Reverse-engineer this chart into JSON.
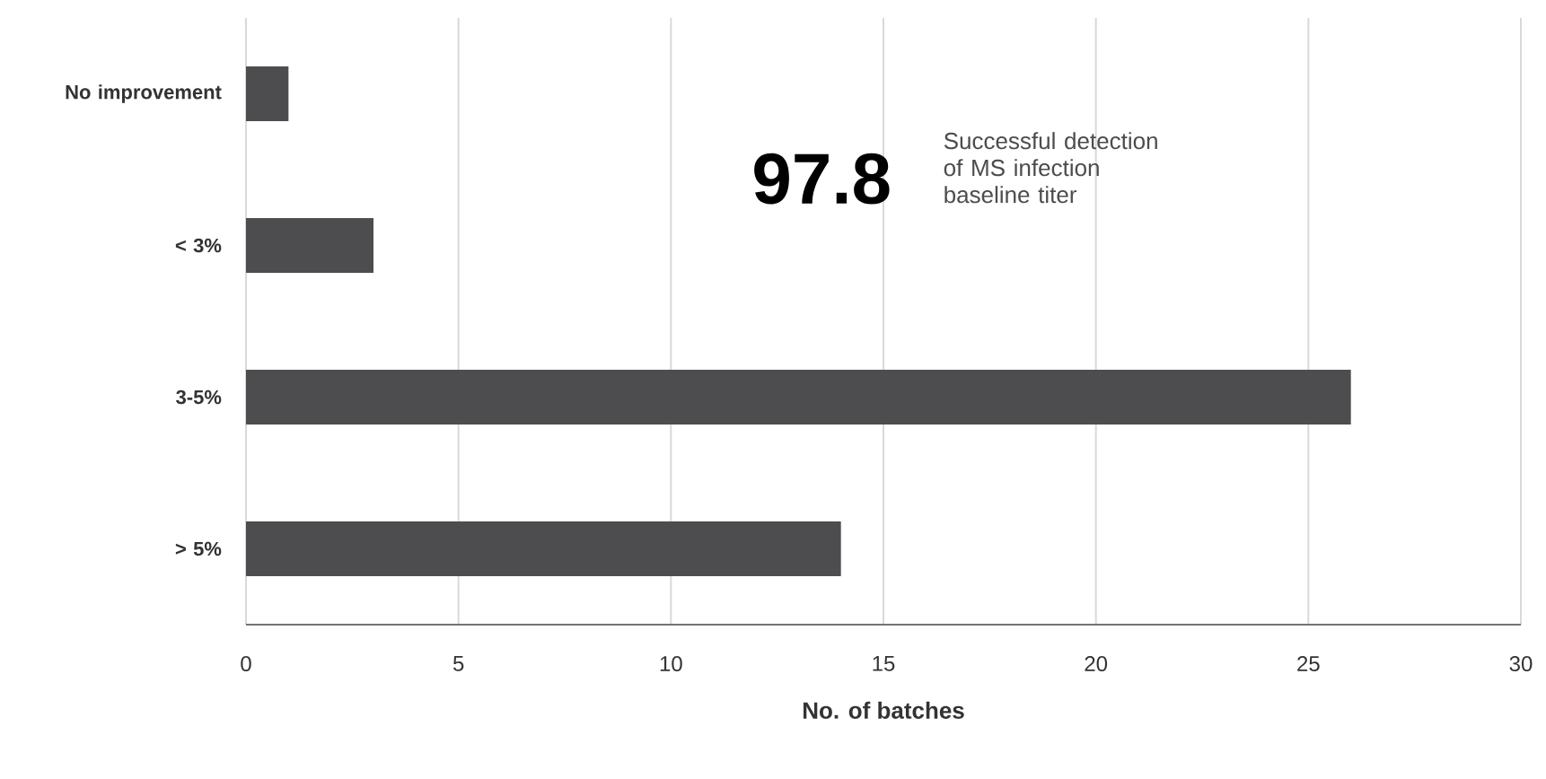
{
  "chart_data": {
    "type": "bar",
    "orientation": "horizontal",
    "categories": [
      "No improvement",
      "< 3%",
      "3-5%",
      "> 5%"
    ],
    "values": [
      1,
      3,
      26,
      14
    ],
    "color": "#4d4d4f",
    "xlabel": "No. of batches",
    "xlim": [
      0,
      30
    ],
    "xticks": [
      0,
      5,
      10,
      15,
      20,
      25,
      30
    ],
    "grid": "x",
    "annotations": [
      "97.8",
      "Successful detection of MS infection baseline titer"
    ]
  }
}
